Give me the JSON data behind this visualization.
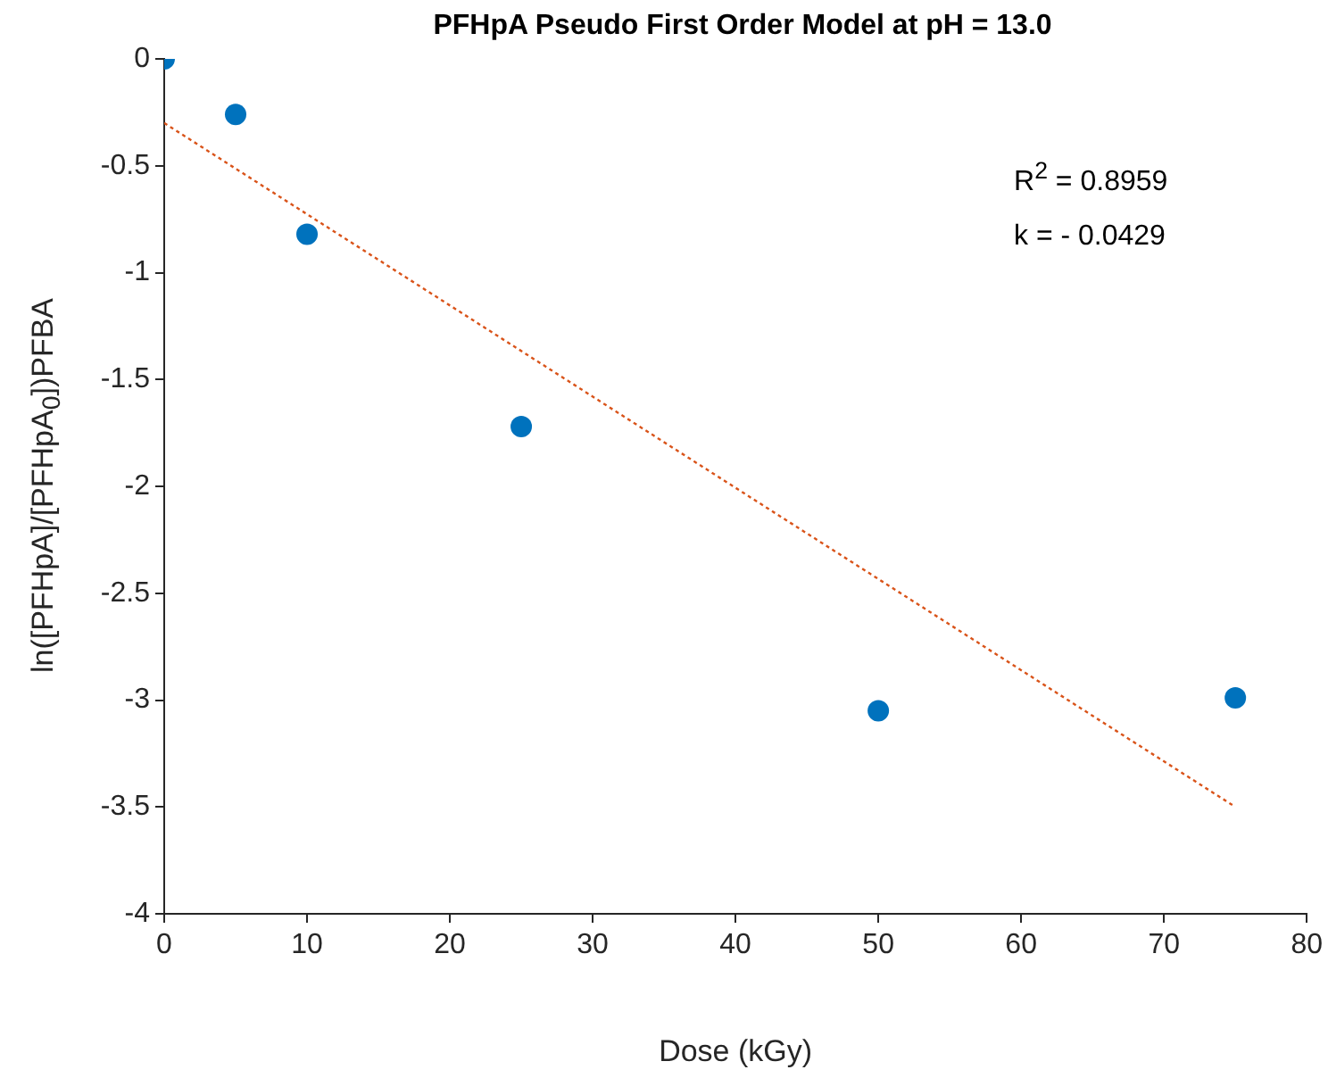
{
  "chart_data": {
    "type": "scatter",
    "title": "PFHpA Pseudo First Order Model at pH = 13.0",
    "xlabel": "Dose (kGy)",
    "ylabel": "ln([PFHpA]/[PFHpA$_{0}$])PFBA",
    "series": [
      {
        "color": "#0072bd",
        "x": [
          0,
          5,
          10,
          25,
          50,
          75
        ],
        "values": [
          0,
          -0.26,
          -0.82,
          -1.72,
          -3.05,
          -2.99
        ],
        "marker": "circle"
      },
      {
        "type": "line",
        "color": "#d95319",
        "x": [
          0,
          75
        ],
        "values": [
          -0.3,
          -3.5
        ],
        "marker": "none",
        "line_style": "dotted"
      }
    ],
    "annotations": [
      "R$^{2}$ = 0.8959",
      "k = - 0.0429"
    ],
    "xlim": [
      0,
      80
    ],
    "xticks": [
      0,
      10,
      20,
      30,
      40,
      50,
      60,
      70,
      80
    ],
    "ylim": [
      -4,
      0
    ],
    "yticks": [
      -4,
      -3.5,
      -3,
      -2.5,
      -2,
      -1.5,
      -1,
      -0.5,
      0
    ],
    "grid": false,
    "legend": false
  }
}
